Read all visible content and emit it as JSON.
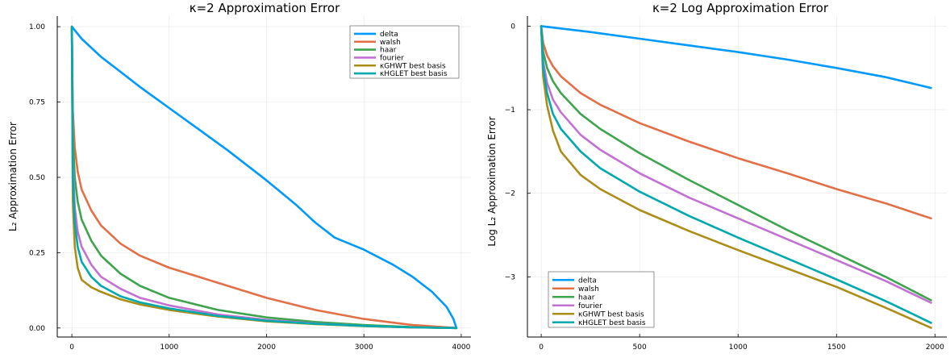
{
  "chart_data": [
    {
      "type": "line",
      "title": "κ=2 Approximation Error",
      "xlabel": "",
      "ylabel": "L₂ Approximation Error",
      "xlim": [
        -150,
        4100
      ],
      "ylim": [
        -0.03,
        1.035
      ],
      "xticks": [
        0,
        1000,
        2000,
        3000,
        4000
      ],
      "xtick_labels": [
        "0",
        "1000",
        "2000",
        "3000",
        "4000"
      ],
      "yticks": [
        0.0,
        0.25,
        0.5,
        0.75,
        1.0
      ],
      "ytick_labels": [
        "0.00",
        "0.25",
        "0.50",
        "0.75",
        "1.00"
      ],
      "grid": true,
      "legend_position": "top-right",
      "series": [
        {
          "name": "delta",
          "color": "#009AFA",
          "x": [
            0,
            100,
            300,
            500,
            700,
            1000,
            1300,
            1600,
            2000,
            2300,
            2500,
            2700,
            3000,
            3300,
            3500,
            3700,
            3850,
            3920,
            3950
          ],
          "y": [
            1.0,
            0.96,
            0.9,
            0.85,
            0.8,
            0.73,
            0.66,
            0.59,
            0.49,
            0.41,
            0.35,
            0.3,
            0.26,
            0.21,
            0.17,
            0.12,
            0.07,
            0.03,
            0.0
          ]
        },
        {
          "name": "walsh",
          "color": "#E36F47",
          "x": [
            0,
            10,
            30,
            60,
            100,
            200,
            300,
            500,
            700,
            1000,
            1500,
            2000,
            2500,
            3000,
            3500,
            3950
          ],
          "y": [
            1.0,
            0.72,
            0.6,
            0.52,
            0.46,
            0.39,
            0.34,
            0.28,
            0.24,
            0.2,
            0.15,
            0.1,
            0.06,
            0.03,
            0.01,
            0.0
          ]
        },
        {
          "name": "haar",
          "color": "#3EA44E",
          "x": [
            0,
            10,
            30,
            60,
            100,
            200,
            300,
            500,
            700,
            1000,
            1500,
            2000,
            2500,
            3000,
            3500,
            3950
          ],
          "y": [
            1.0,
            0.64,
            0.5,
            0.42,
            0.36,
            0.29,
            0.24,
            0.18,
            0.14,
            0.1,
            0.06,
            0.035,
            0.02,
            0.01,
            0.003,
            0.0
          ]
        },
        {
          "name": "fourier",
          "color": "#C271D2",
          "x": [
            0,
            10,
            30,
            60,
            100,
            200,
            300,
            500,
            700,
            1000,
            1500,
            2000,
            2500,
            3000,
            3500,
            3950
          ],
          "y": [
            1.0,
            0.55,
            0.4,
            0.32,
            0.27,
            0.21,
            0.17,
            0.13,
            0.1,
            0.075,
            0.045,
            0.027,
            0.015,
            0.007,
            0.002,
            0.0
          ]
        },
        {
          "name": "κGHWT best basis",
          "color": "#AC8D18",
          "x": [
            0,
            10,
            30,
            60,
            100,
            200,
            300,
            500,
            700,
            1000,
            1500,
            2000,
            2500,
            3000,
            3500,
            3950
          ],
          "y": [
            1.0,
            0.42,
            0.27,
            0.2,
            0.16,
            0.135,
            0.12,
            0.095,
            0.078,
            0.06,
            0.038,
            0.022,
            0.013,
            0.006,
            0.002,
            0.0
          ]
        },
        {
          "name": "κHGLET best basis",
          "color": "#00A9AD",
          "x": [
            0,
            10,
            30,
            60,
            100,
            200,
            300,
            500,
            700,
            1000,
            1500,
            2000,
            2500,
            3000,
            3500,
            3950
          ],
          "y": [
            1.0,
            0.5,
            0.35,
            0.27,
            0.22,
            0.17,
            0.14,
            0.105,
            0.085,
            0.065,
            0.04,
            0.024,
            0.014,
            0.007,
            0.002,
            0.0
          ]
        }
      ]
    },
    {
      "type": "line",
      "title": "κ=2 Log Approximation Error",
      "xlabel": "",
      "ylabel": "Log L₂ Approximation Error",
      "xlim": [
        -70,
        2060
      ],
      "ylim": [
        -3.72,
        0.12
      ],
      "xticks": [
        0,
        500,
        1000,
        1500,
        2000
      ],
      "xtick_labels": [
        "0",
        "500",
        "1000",
        "1500",
        "2000"
      ],
      "yticks": [
        0,
        -1,
        -2,
        -3
      ],
      "ytick_labels": [
        "0",
        "−1",
        "−2",
        "−3"
      ],
      "grid": true,
      "legend_position": "bottom-left",
      "series": [
        {
          "name": "delta",
          "color": "#009AFA",
          "x": [
            0,
            250,
            500,
            750,
            1000,
            1250,
            1500,
            1750,
            1980
          ],
          "y": [
            0.0,
            -0.07,
            -0.15,
            -0.23,
            -0.31,
            -0.4,
            -0.5,
            -0.61,
            -0.74
          ]
        },
        {
          "name": "walsh",
          "color": "#E36F47",
          "x": [
            0,
            10,
            30,
            60,
            100,
            200,
            300,
            500,
            750,
            1000,
            1250,
            1500,
            1750,
            1980
          ],
          "y": [
            0.0,
            -0.2,
            -0.35,
            -0.48,
            -0.6,
            -0.8,
            -0.94,
            -1.16,
            -1.38,
            -1.58,
            -1.76,
            -1.95,
            -2.12,
            -2.3
          ]
        },
        {
          "name": "haar",
          "color": "#3EA44E",
          "x": [
            0,
            10,
            30,
            60,
            100,
            200,
            300,
            500,
            750,
            1000,
            1250,
            1500,
            1750,
            1980
          ],
          "y": [
            0.0,
            -0.3,
            -0.5,
            -0.66,
            -0.8,
            -1.05,
            -1.23,
            -1.52,
            -1.84,
            -2.14,
            -2.44,
            -2.72,
            -3.0,
            -3.28
          ]
        },
        {
          "name": "fourier",
          "color": "#C271D2",
          "x": [
            0,
            10,
            30,
            60,
            100,
            200,
            300,
            500,
            750,
            1000,
            1250,
            1500,
            1750,
            1980
          ],
          "y": [
            0.0,
            -0.42,
            -0.68,
            -0.88,
            -1.03,
            -1.3,
            -1.48,
            -1.76,
            -2.05,
            -2.3,
            -2.55,
            -2.8,
            -3.05,
            -3.31
          ]
        },
        {
          "name": "κGHWT best basis",
          "color": "#AC8D18",
          "x": [
            0,
            10,
            30,
            60,
            100,
            200,
            300,
            500,
            750,
            1000,
            1250,
            1500,
            1750,
            1980
          ],
          "y": [
            0.0,
            -0.6,
            -0.95,
            -1.25,
            -1.5,
            -1.78,
            -1.95,
            -2.2,
            -2.45,
            -2.68,
            -2.9,
            -3.12,
            -3.37,
            -3.61
          ]
        },
        {
          "name": "κHGLET best basis",
          "color": "#00A9AD",
          "x": [
            0,
            10,
            30,
            60,
            100,
            200,
            300,
            500,
            750,
            1000,
            1250,
            1500,
            1750,
            1980
          ],
          "y": [
            0.0,
            -0.5,
            -0.8,
            -1.05,
            -1.23,
            -1.5,
            -1.7,
            -1.98,
            -2.27,
            -2.53,
            -2.78,
            -3.03,
            -3.29,
            -3.55
          ]
        }
      ]
    }
  ]
}
